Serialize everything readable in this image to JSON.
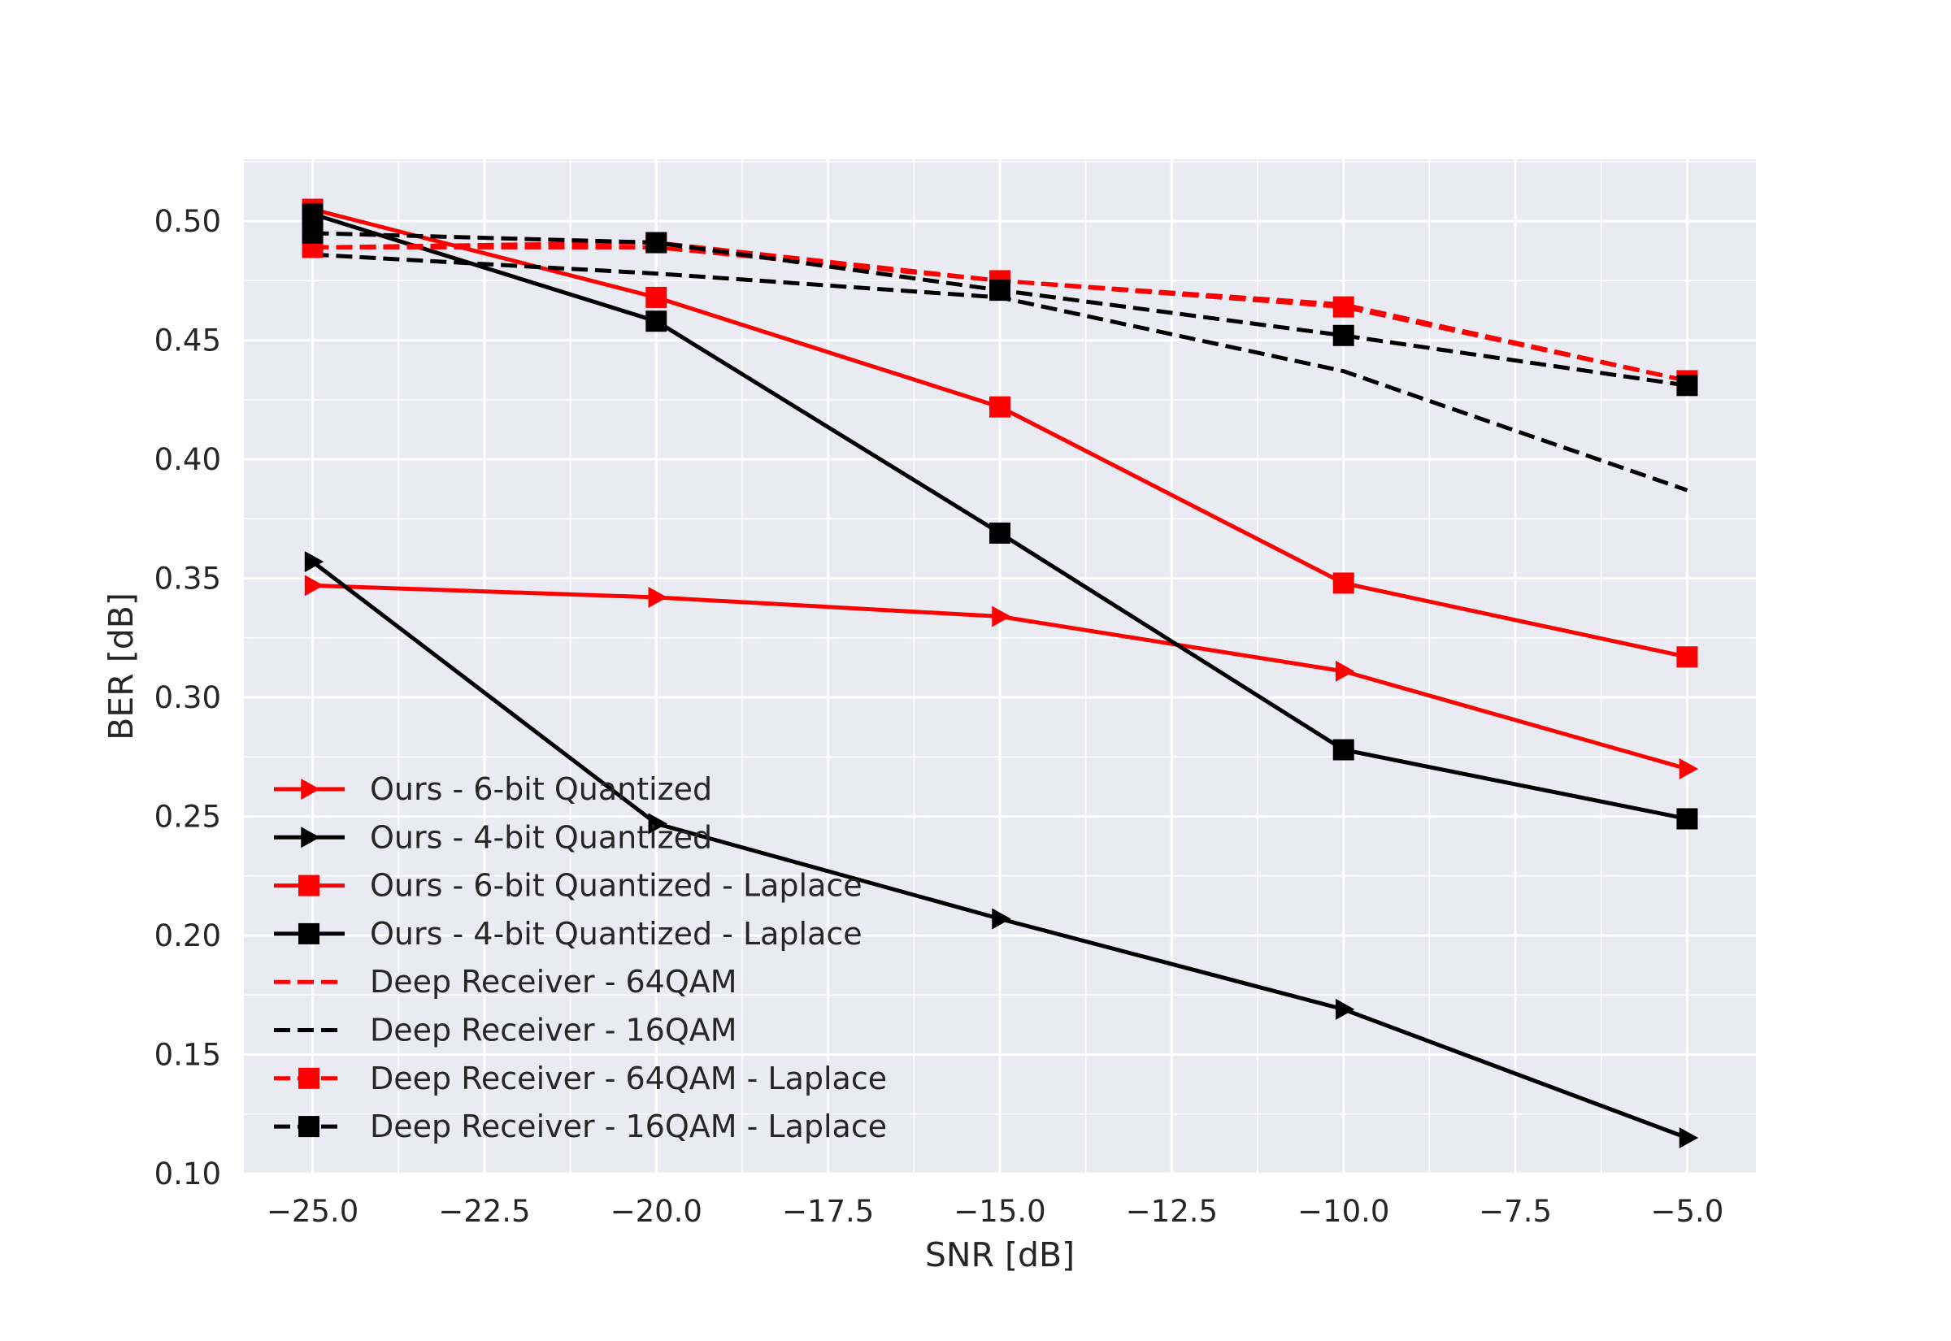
{
  "chart_data": {
    "type": "line",
    "xlabel": "SNR [dB]",
    "ylabel": "BER [dB]",
    "xlim": [
      -26,
      -4
    ],
    "ylim": [
      0.1,
      0.526
    ],
    "x_ticks": [
      -25.0,
      -22.5,
      -20.0,
      -17.5,
      -15.0,
      -12.5,
      -10.0,
      -7.5,
      -5.0
    ],
    "x_tick_labels": [
      "−25.0",
      "−22.5",
      "−20.0",
      "−17.5",
      "−15.0",
      "−12.5",
      "−10.0",
      "−7.5",
      "−5.0"
    ],
    "y_ticks": [
      0.1,
      0.15,
      0.2,
      0.25,
      0.3,
      0.35,
      0.4,
      0.45,
      0.5
    ],
    "y_tick_labels": [
      "0.10",
      "0.15",
      "0.20",
      "0.25",
      "0.30",
      "0.35",
      "0.40",
      "0.45",
      "0.50"
    ],
    "grid": true,
    "background": "#eaeaf2",
    "legend_position": "lower-left",
    "x": [
      -25,
      -20,
      -15,
      -10,
      -5
    ],
    "series": [
      {
        "name": "Ours - 6-bit Quantized",
        "color": "#ff0000",
        "dash": "solid",
        "marker": "triangle-right",
        "values": [
          0.347,
          0.342,
          0.334,
          0.311,
          0.27
        ]
      },
      {
        "name": "Ours - 4-bit Quantized",
        "color": "#000000",
        "dash": "solid",
        "marker": "triangle-right",
        "values": [
          0.357,
          0.247,
          0.207,
          0.169,
          0.115
        ]
      },
      {
        "name": "Ours - 6-bit Quantized - Laplace",
        "color": "#ff0000",
        "dash": "solid",
        "marker": "square",
        "values": [
          0.505,
          0.468,
          0.422,
          0.348,
          0.317
        ]
      },
      {
        "name": "Ours - 4-bit Quantized - Laplace",
        "color": "#000000",
        "dash": "solid",
        "marker": "square",
        "values": [
          0.503,
          0.458,
          0.369,
          0.278,
          0.249
        ]
      },
      {
        "name": "Deep Receiver - 64QAM",
        "color": "#ff0000",
        "dash": "dashed",
        "marker": "none",
        "values": [
          0.489,
          0.489,
          0.475,
          0.465,
          0.433
        ]
      },
      {
        "name": "Deep Receiver - 16QAM",
        "color": "#000000",
        "dash": "dashed",
        "marker": "none",
        "values": [
          0.486,
          0.478,
          0.468,
          0.437,
          0.387
        ]
      },
      {
        "name": "Deep Receiver - 64QAM - Laplace",
        "color": "#ff0000",
        "dash": "dashed",
        "marker": "square",
        "values": [
          0.489,
          0.491,
          0.475,
          0.464,
          0.433
        ]
      },
      {
        "name": "Deep Receiver - 16QAM - Laplace",
        "color": "#000000",
        "dash": "dashed",
        "marker": "square",
        "values": [
          0.495,
          0.491,
          0.471,
          0.452,
          0.431
        ]
      }
    ]
  }
}
